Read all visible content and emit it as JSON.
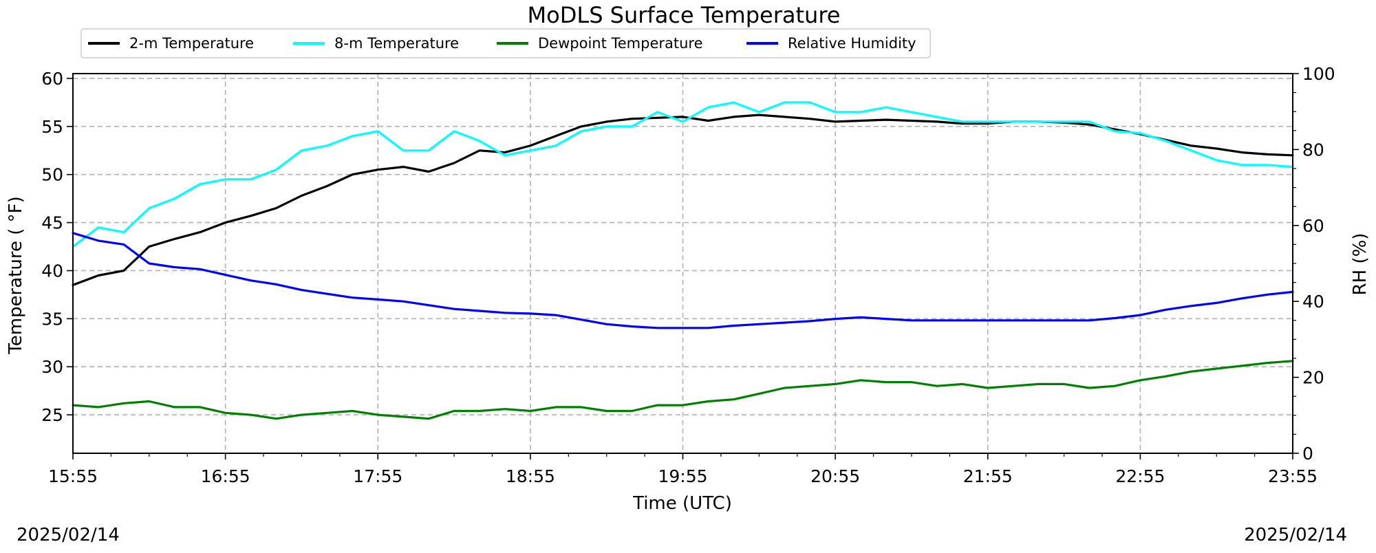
{
  "chart_data": {
    "type": "line",
    "title": "MoDLS Surface Temperature",
    "xlabel": "Time (UTC)",
    "ylabel": "Temperature ($^\\circ$F)",
    "ylabel_display": "Temperature ( °F)",
    "y2label": "RH (%)",
    "x_range": [
      "15:55",
      "23:55"
    ],
    "x_ticks": [
      "15:55",
      "16:55",
      "17:55",
      "18:55",
      "19:55",
      "20:55",
      "21:55",
      "22:55",
      "23:55"
    ],
    "ylim": [
      21,
      60.5
    ],
    "y_ticks": [
      25,
      30,
      35,
      40,
      45,
      50,
      55,
      60
    ],
    "y2lim": [
      0,
      100
    ],
    "y2_ticks": [
      0,
      20,
      40,
      60,
      80,
      100
    ],
    "grid": true,
    "legend_position": "top-left, above plot",
    "dates": {
      "left": "2025/02/14",
      "right": "2025/02/14"
    },
    "series": [
      {
        "name": "2-m Temperature",
        "color": "#000000",
        "axis": "left",
        "x": [
          "15:55",
          "16:05",
          "16:15",
          "16:25",
          "16:35",
          "16:45",
          "16:55",
          "17:05",
          "17:15",
          "17:25",
          "17:35",
          "17:45",
          "17:55",
          "18:05",
          "18:15",
          "18:25",
          "18:35",
          "18:45",
          "18:55",
          "19:05",
          "19:15",
          "19:25",
          "19:35",
          "19:45",
          "19:55",
          "20:05",
          "20:15",
          "20:25",
          "20:35",
          "20:45",
          "20:55",
          "21:05",
          "21:15",
          "21:25",
          "21:35",
          "21:45",
          "21:55",
          "22:05",
          "22:15",
          "22:25",
          "22:35",
          "22:45",
          "22:55",
          "23:05",
          "23:15",
          "23:25",
          "23:35",
          "23:45",
          "23:55"
        ],
        "values": [
          38.5,
          39.5,
          40.0,
          42.5,
          43.3,
          44.0,
          45.0,
          45.7,
          46.5,
          47.8,
          48.8,
          50.0,
          50.5,
          50.8,
          50.3,
          51.2,
          52.5,
          52.3,
          53.0,
          54.0,
          55.0,
          55.5,
          55.8,
          55.9,
          56.0,
          55.6,
          56.0,
          56.2,
          56.0,
          55.8,
          55.5,
          55.6,
          55.7,
          55.6,
          55.5,
          55.3,
          55.3,
          55.5,
          55.5,
          55.4,
          55.2,
          54.7,
          54.2,
          53.6,
          53.0,
          52.7,
          52.3,
          52.1,
          52.0
        ]
      },
      {
        "name": "8-m Temperature",
        "color": "#00ffff",
        "axis": "left",
        "x": [
          "15:55",
          "16:05",
          "16:15",
          "16:25",
          "16:35",
          "16:45",
          "16:55",
          "17:05",
          "17:15",
          "17:25",
          "17:35",
          "17:45",
          "17:55",
          "18:05",
          "18:15",
          "18:25",
          "18:35",
          "18:45",
          "18:55",
          "19:05",
          "19:15",
          "19:25",
          "19:35",
          "19:45",
          "19:55",
          "20:05",
          "20:15",
          "20:25",
          "20:35",
          "20:45",
          "20:55",
          "21:05",
          "21:15",
          "21:25",
          "21:35",
          "21:45",
          "21:55",
          "22:05",
          "22:15",
          "22:25",
          "22:35",
          "22:45",
          "22:55",
          "23:05",
          "23:15",
          "23:25",
          "23:35",
          "23:45",
          "23:55"
        ],
        "values": [
          42.5,
          44.5,
          44.0,
          46.5,
          47.5,
          49.0,
          49.5,
          49.5,
          50.5,
          52.5,
          53.0,
          54.0,
          54.5,
          52.5,
          52.5,
          54.5,
          53.5,
          52.0,
          52.5,
          53.0,
          54.5,
          55.0,
          55.0,
          56.5,
          55.5,
          57.0,
          57.5,
          56.5,
          57.5,
          57.5,
          56.5,
          56.5,
          57.0,
          56.5,
          56.0,
          55.5,
          55.5,
          55.5,
          55.5,
          55.5,
          55.5,
          54.5,
          54.3,
          53.5,
          52.5,
          51.5,
          51.0,
          51.0,
          50.8
        ]
      },
      {
        "name": "Dewpoint Temperature",
        "color": "#008000",
        "axis": "left",
        "x": [
          "15:55",
          "16:05",
          "16:15",
          "16:25",
          "16:35",
          "16:45",
          "16:55",
          "17:05",
          "17:15",
          "17:25",
          "17:35",
          "17:45",
          "17:55",
          "18:05",
          "18:15",
          "18:25",
          "18:35",
          "18:45",
          "18:55",
          "19:05",
          "19:15",
          "19:25",
          "19:35",
          "19:45",
          "19:55",
          "20:05",
          "20:15",
          "20:25",
          "20:35",
          "20:45",
          "20:55",
          "21:05",
          "21:15",
          "21:25",
          "21:35",
          "21:45",
          "21:55",
          "22:05",
          "22:15",
          "22:25",
          "22:35",
          "22:45",
          "22:55",
          "23:05",
          "23:15",
          "23:25",
          "23:35",
          "23:45",
          "23:55"
        ],
        "values": [
          26.0,
          25.8,
          26.2,
          26.4,
          25.8,
          25.8,
          25.2,
          25.0,
          24.6,
          25.0,
          25.2,
          25.4,
          25.0,
          24.8,
          24.6,
          25.4,
          25.4,
          25.6,
          25.4,
          25.8,
          25.8,
          25.4,
          25.4,
          26.0,
          26.0,
          26.4,
          26.6,
          27.2,
          27.8,
          28.0,
          28.2,
          28.6,
          28.4,
          28.4,
          28.0,
          28.2,
          27.8,
          28.0,
          28.2,
          28.2,
          27.8,
          28.0,
          28.6,
          29.0,
          29.5,
          29.8,
          30.1,
          30.4,
          30.6
        ]
      },
      {
        "name": "Relative Humidity",
        "color": "#0000ff",
        "axis": "right",
        "x": [
          "15:55",
          "16:05",
          "16:15",
          "16:25",
          "16:35",
          "16:45",
          "16:55",
          "17:05",
          "17:15",
          "17:25",
          "17:35",
          "17:45",
          "17:55",
          "18:05",
          "18:15",
          "18:25",
          "18:35",
          "18:45",
          "18:55",
          "19:05",
          "19:15",
          "19:25",
          "19:35",
          "19:45",
          "19:55",
          "20:05",
          "20:15",
          "20:25",
          "20:35",
          "20:45",
          "20:55",
          "21:05",
          "21:15",
          "21:25",
          "21:35",
          "21:45",
          "21:55",
          "22:05",
          "22:15",
          "22:25",
          "22:35",
          "22:45",
          "22:55",
          "23:05",
          "23:15",
          "23:25",
          "23:35",
          "23:45",
          "23:55"
        ],
        "values": [
          58.0,
          56.0,
          55.0,
          50.0,
          49.0,
          48.5,
          47.0,
          45.5,
          44.5,
          43.0,
          42.0,
          41.0,
          40.5,
          40.0,
          39.0,
          38.0,
          37.5,
          37.0,
          36.8,
          36.4,
          35.2,
          34.0,
          33.4,
          33.0,
          33.0,
          33.0,
          33.6,
          34.0,
          34.4,
          34.8,
          35.4,
          35.8,
          35.4,
          35.0,
          35.0,
          35.0,
          35.0,
          35.0,
          35.0,
          35.0,
          35.0,
          35.6,
          36.4,
          37.8,
          38.8,
          39.6,
          40.8,
          41.8,
          42.5
        ]
      }
    ]
  }
}
